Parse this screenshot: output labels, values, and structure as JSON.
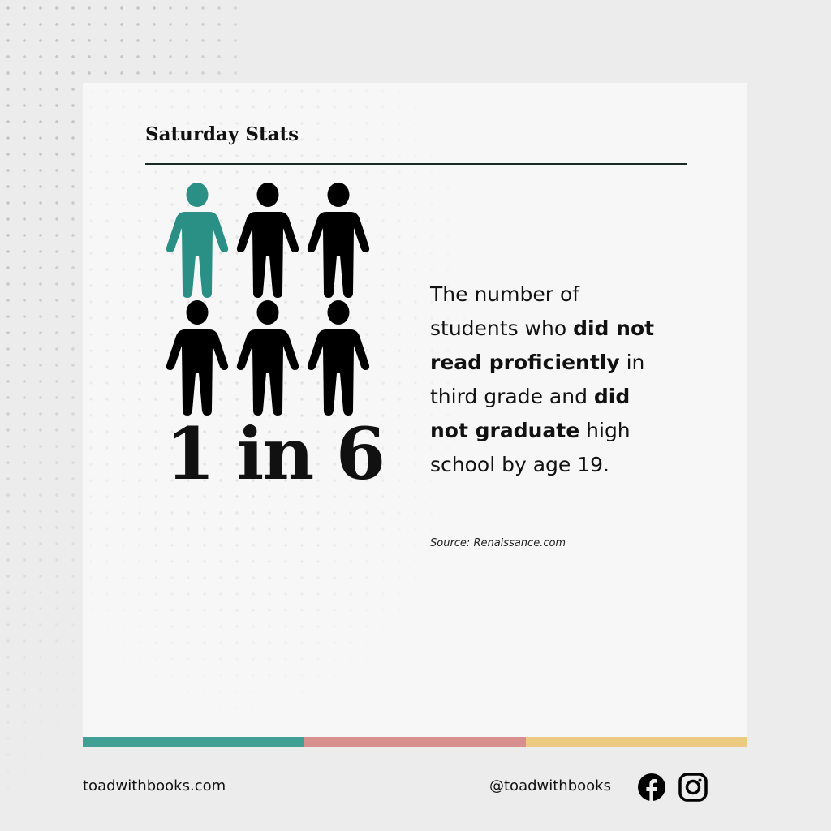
{
  "header": {
    "title": "Saturday Stats"
  },
  "stat": {
    "headline": "1 in 6",
    "highlighted_count": 1,
    "total_count": 6,
    "highlight_color": "#2a9085",
    "default_color": "#000000",
    "description_parts": [
      {
        "text": "The number of students who ",
        "bold": false
      },
      {
        "text": "did not read proficiently",
        "bold": true
      },
      {
        "text": " in third grade and ",
        "bold": false
      },
      {
        "text": "did not graduate",
        "bold": true
      },
      {
        "text": " high school by age 19.",
        "bold": false
      }
    ],
    "source": "Source: Renaissance.com"
  },
  "color_bar": [
    "#40a093",
    "#d7908d",
    "#ecca82"
  ],
  "footer": {
    "website": "toadwithbooks.com",
    "handle": "@toadwithbooks",
    "icons": [
      "facebook-icon",
      "instagram-icon"
    ]
  }
}
